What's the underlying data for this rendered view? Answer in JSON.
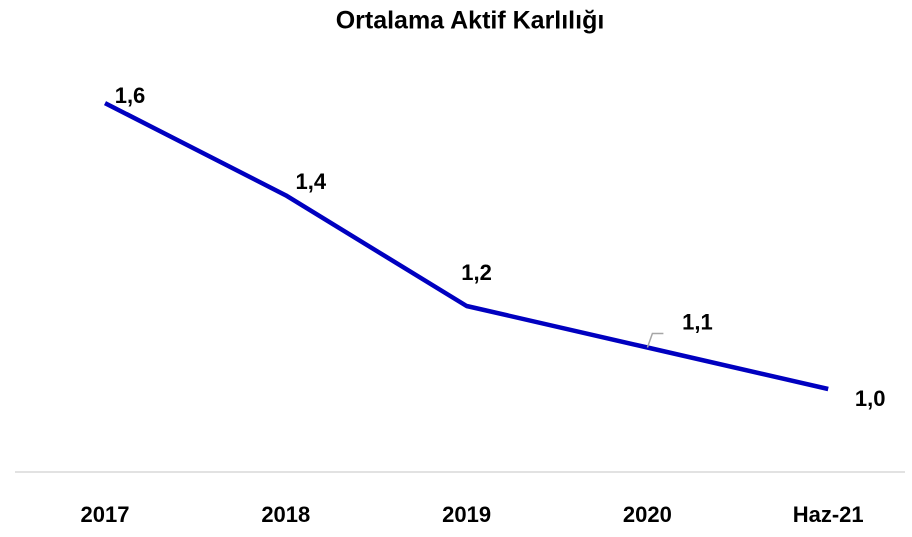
{
  "chart_data": {
    "type": "line",
    "title": "Ortalama Aktif Karlılığı",
    "categories": [
      "2017",
      "2018",
      "2019",
      "2020",
      "Haz-21"
    ],
    "series": [
      {
        "name": "Ortalama Aktif Karlılığı",
        "color": "#0000c0",
        "values": [
          1.6,
          1.4,
          1.16,
          1.07,
          0.98
        ],
        "value_labels": [
          "1,6",
          "1,4",
          "1,2",
          "1,1",
          "1,0"
        ]
      }
    ],
    "ylim": [
      0.8,
      1.7
    ]
  }
}
